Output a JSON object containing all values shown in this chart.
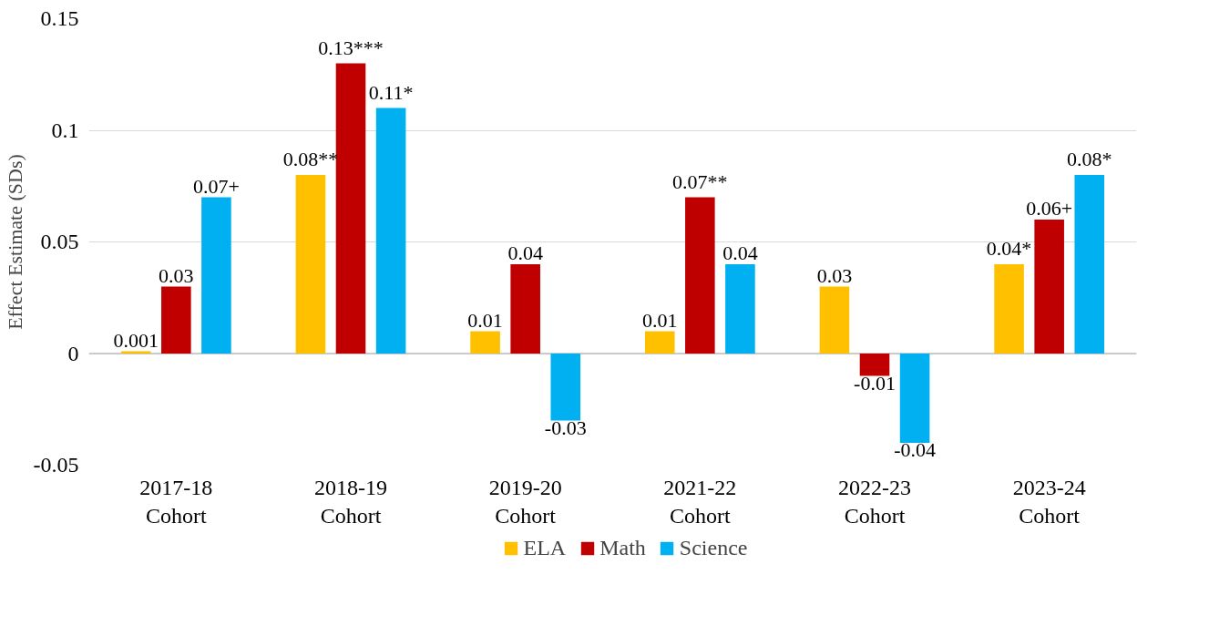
{
  "chart_data": {
    "type": "bar",
    "ylabel": "Effect Estimate (SDs)",
    "categories": [
      "2017-18\nCohort",
      "2018-19\nCohort",
      "2019-20\nCohort",
      "2021-22\nCohort",
      "2022-23\nCohort",
      "2023-24\nCohort"
    ],
    "series": [
      {
        "name": "ELA",
        "color": "#ffc000",
        "values": [
          0.001,
          0.08,
          0.01,
          0.01,
          0.03,
          0.04
        ],
        "value_labels": [
          "0.001",
          "0.08**",
          "0.01",
          "0.01",
          "0.03",
          "0.04*"
        ]
      },
      {
        "name": "Math",
        "color": "#c00000",
        "values": [
          0.03,
          0.13,
          0.04,
          0.07,
          -0.01,
          0.06
        ],
        "value_labels": [
          "0.03",
          "0.13***",
          "0.04",
          "0.07**",
          "-0.01",
          "0.06+"
        ]
      },
      {
        "name": "Science",
        "color": "#00b0f0",
        "values": [
          0.07,
          0.11,
          -0.03,
          0.04,
          -0.04,
          0.08
        ],
        "value_labels": [
          "0.07+",
          "0.11*",
          "-0.03",
          "0.04",
          "-0.04",
          "0.08*"
        ]
      }
    ],
    "ylim": [
      -0.05,
      0.15
    ],
    "yticks": [
      -0.05,
      0,
      0.05,
      0.1,
      0.15
    ],
    "grid": "y",
    "legend": "bottom"
  }
}
